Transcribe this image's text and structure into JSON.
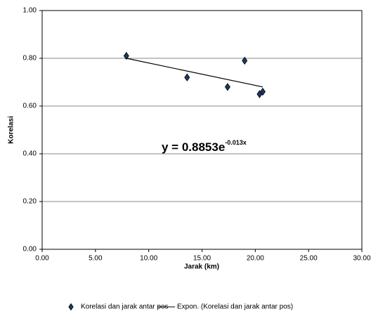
{
  "chart_data": {
    "type": "scatter",
    "x_label": "Jarak (km)",
    "y_label": "Korelasi",
    "xlim": [
      0,
      30
    ],
    "ylim": [
      0,
      1
    ],
    "xticks": [
      {
        "value": 0,
        "label": "0.00"
      },
      {
        "value": 5,
        "label": "5.00"
      },
      {
        "value": 10,
        "label": "10.00"
      },
      {
        "value": 15,
        "label": "15.00"
      },
      {
        "value": 20,
        "label": "20.00"
      },
      {
        "value": 25,
        "label": "25.00"
      },
      {
        "value": 30,
        "label": "30.00"
      }
    ],
    "yticks": [
      {
        "value": 0,
        "label": "0.00"
      },
      {
        "value": 0.2,
        "label": "0.20"
      },
      {
        "value": 0.4,
        "label": "0.40"
      },
      {
        "value": 0.6,
        "label": "0.60"
      },
      {
        "value": 0.8,
        "label": "0.80"
      },
      {
        "value": 1,
        "label": "1.00"
      }
    ],
    "grid": true,
    "legend": "bottom",
    "series": [
      {
        "name": "Korelasi dan jarak antar pos",
        "mode": "markers",
        "color": "#1f3864",
        "x": [
          7.9,
          13.6,
          17.4,
          19.0,
          20.4,
          20.7
        ],
        "values": [
          0.81,
          0.72,
          0.68,
          0.79,
          0.65,
          0.66
        ]
      },
      {
        "name": "Expon. (Korelasi dan jarak antar pos)",
        "mode": "line",
        "color": "#000000",
        "x": [
          7.9,
          20.7
        ],
        "values": [
          0.8,
          0.68
        ]
      }
    ],
    "annotation": {
      "text": "y = 0.8853e",
      "superscript": "-0.013x"
    }
  }
}
